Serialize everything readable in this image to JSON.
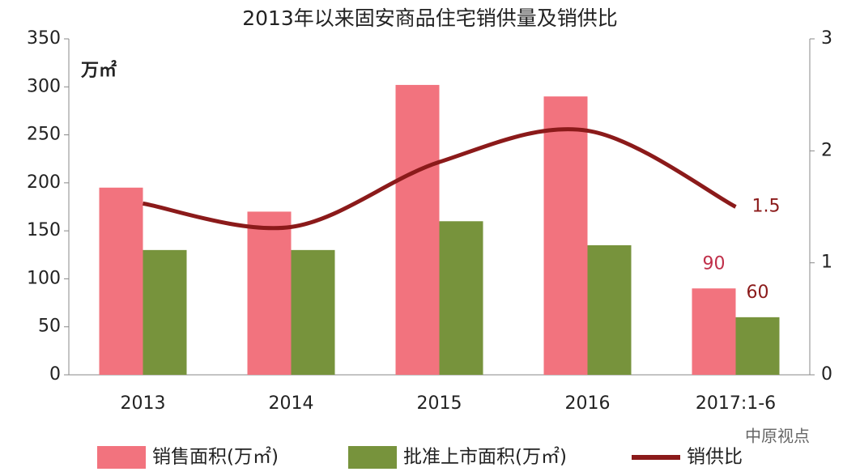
{
  "chart_data": {
    "type": "bar",
    "title": "2013年以来固安商品住宅销供量及销供比",
    "y_unit": "万㎡",
    "watermark": "中原视点",
    "categories": [
      "2013",
      "2014",
      "2015",
      "2016",
      "2017:1-6"
    ],
    "series": [
      {
        "name": "销售面积(万㎡)",
        "type": "bar",
        "color": "#f2737e",
        "values": [
          195,
          170,
          302,
          290,
          90
        ]
      },
      {
        "name": "批准上市面积(万㎡)",
        "type": "bar",
        "color": "#77933c",
        "values": [
          130,
          130,
          160,
          135,
          60
        ]
      },
      {
        "name": "销供比",
        "type": "line",
        "axis": "y2",
        "color": "#8b1a1a",
        "values": [
          1.53,
          1.32,
          1.9,
          2.18,
          1.5
        ]
      }
    ],
    "ylim": [
      0,
      350
    ],
    "yticks": [
      0,
      50,
      100,
      150,
      200,
      250,
      300,
      350
    ],
    "y2lim": [
      0,
      3
    ],
    "y2ticks": [
      0,
      1,
      2,
      3
    ],
    "legend": "bottom"
  }
}
